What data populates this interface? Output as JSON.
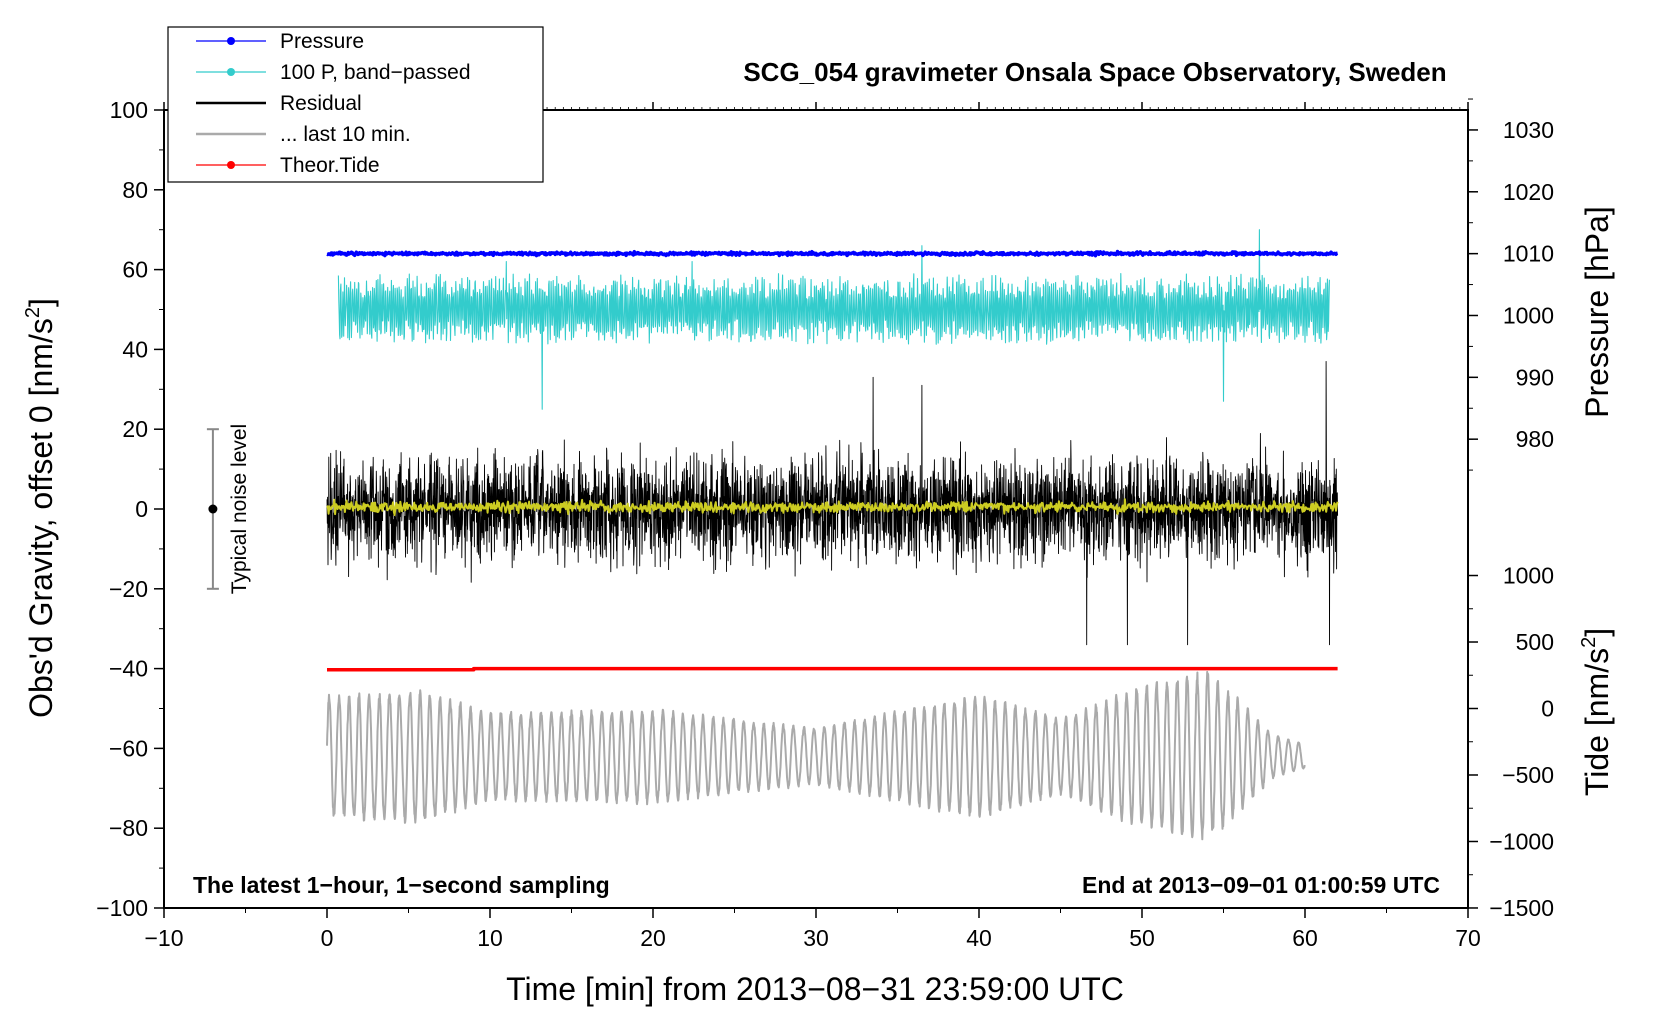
{
  "chart_data": {
    "type": "line",
    "title": "SCG_054 gravimeter Onsala Space Observatory, Sweden",
    "xlabel": "Time [min] from 2013−08−31 23:59:00 UTC",
    "ylabel_left": "Obs'd Gravity, offset 0 [nm/s",
    "ylabel_left_sup": "2",
    "ylabel_left_tail": "]",
    "ylabel_right_pressure": "Pressure [hPa]",
    "ylabel_right_tide": "Tide [nm/s",
    "ylabel_right_tide_sup": "2",
    "ylabel_right_tide_tail": "]",
    "xlim": [
      -10,
      70
    ],
    "ylim": [
      -100,
      100
    ],
    "xticks": [
      "−10",
      "0",
      "10",
      "20",
      "30",
      "40",
      "50",
      "60",
      "70"
    ],
    "xtick_values": [
      -10,
      0,
      10,
      20,
      30,
      40,
      50,
      60,
      70
    ],
    "yticks": [
      "100",
      "80",
      "60",
      "40",
      "20",
      "0",
      "−20",
      "−40",
      "−60",
      "−80",
      "−100"
    ],
    "ytick_values": [
      100,
      80,
      60,
      40,
      20,
      0,
      -20,
      -40,
      -60,
      -80,
      -100
    ],
    "pressure_ticks": [
      "1030",
      "1020",
      "1010",
      "1000",
      "990",
      "980"
    ],
    "pressure_tick_values": [
      1030,
      1020,
      1010,
      1000,
      990,
      980
    ],
    "pressure_scale": {
      "value": 1010,
      "gravity_at": 64,
      "gravity_per_hpa": 1.55
    },
    "tide_ticks": [
      "1000",
      "500",
      "0",
      "−500",
      "−1000",
      "−1500"
    ],
    "tide_tick_values": [
      1000,
      500,
      0,
      -500,
      -1000,
      -1500
    ],
    "tide_scale": {
      "value": 0,
      "gravity_at": -50,
      "gravity_per_unit": 0.03333
    },
    "series": [
      {
        "name": "Pressure",
        "color": "#0000ff",
        "type": "flat-noisy",
        "x_start": 0,
        "x_end": 62,
        "level": 64,
        "amplitude": 0.3
      },
      {
        "name": "100 P, band−passed",
        "color": "#33cccc",
        "type": "oscillation",
        "x_start": 0.7,
        "x_end": 61.5,
        "level": 50,
        "amplitude": 6,
        "spikes": [
          [
            13.2,
            25
          ],
          [
            57.2,
            70
          ],
          [
            55,
            27
          ],
          [
            36.5,
            66
          ],
          [
            11,
            62
          ],
          [
            22.4,
            62
          ]
        ]
      },
      {
        "name": "Residual",
        "color": "#000000",
        "type": "noise",
        "x_start": 0,
        "x_end": 62,
        "level": 0,
        "amplitude": 14,
        "spikes": [
          [
            61.3,
            37
          ],
          [
            61.5,
            -34
          ],
          [
            52.8,
            -34
          ],
          [
            46.6,
            -34
          ],
          [
            49.1,
            -34
          ],
          [
            36.5,
            31
          ],
          [
            33.5,
            33
          ]
        ]
      },
      {
        "name": "... last 10 min.",
        "color": "#aaaaaa",
        "type": "wave",
        "x_start": 0,
        "x_end": 60,
        "level": -62,
        "amplitude": 14,
        "period": 0.62,
        "envelope": [
          [
            0,
            1
          ],
          [
            6,
            1.05
          ],
          [
            10,
            0.7
          ],
          [
            20,
            0.75
          ],
          [
            30,
            0.45
          ],
          [
            40,
            1
          ],
          [
            45,
            0.6
          ],
          [
            50,
            1.15
          ],
          [
            54,
            1.35
          ],
          [
            56,
            0.9
          ],
          [
            58,
            0.35
          ],
          [
            60,
            0.2
          ]
        ]
      },
      {
        "name": "Theor.Tide",
        "color": "#ff0000",
        "type": "step",
        "points": [
          [
            0,
            -40.3
          ],
          [
            9,
            -40.3
          ],
          [
            9,
            -40
          ],
          [
            62,
            -40
          ]
        ]
      },
      {
        "name": "Smoothed residual",
        "color": "#cccc22",
        "type": "noise",
        "x_start": 0,
        "x_end": 62,
        "level": 0.5,
        "amplitude": 1.5
      }
    ],
    "noise_bar": {
      "label": "Typical noise level",
      "x": -7,
      "y_low": -20,
      "y_high": 20,
      "center": 0
    },
    "annotations": {
      "left": "The latest 1−hour, 1−second sampling",
      "right": "End at 2013−09−01 01:00:59 UTC"
    },
    "legend": [
      {
        "label": "Pressure",
        "color": "#0000ff",
        "marker": true
      },
      {
        "label": "100 P, band−passed",
        "color": "#33cccc",
        "marker": true
      },
      {
        "label": "Residual",
        "color": "#000000",
        "marker": false
      },
      {
        "label": "... last 10 min.",
        "color": "#aaaaaa",
        "marker": false
      },
      {
        "label": "Theor.Tide",
        "color": "#ff0000",
        "marker": true
      }
    ]
  }
}
